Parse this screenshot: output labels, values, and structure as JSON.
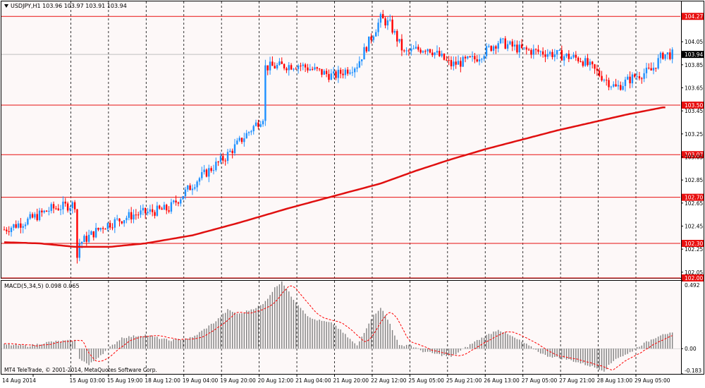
{
  "header": {
    "symbol_line": "USDJPY,H1  103.96 103.97 103.91 103.94",
    "menu_arrow": "triangle-down-icon"
  },
  "indicator": {
    "label": "MACD(5,34,5) 0.098 0.065"
  },
  "copyright": "MT4 TeleTrade, © 2001-2014, MetaQuotes Software Corp.",
  "colors": {
    "background": "#ffffff",
    "bull_candle": "#1e90ff",
    "bear_candle": "#ff0000",
    "level_line": "#e81010",
    "ma_line": "#e01010",
    "macd_hist": "#808080",
    "macd_signal": "#ff0000",
    "current_price_tag": "#000000"
  },
  "chart_data": [
    {
      "type": "candlestick",
      "symbol": "USDJPY",
      "timeframe": "H1",
      "ohlc_header": {
        "open": 103.96,
        "high": 103.97,
        "low": 103.91,
        "close": 103.94
      },
      "current_price": "103.94",
      "ylim": [
        102.0,
        104.4
      ],
      "y_ticks": [
        "104.05",
        "103.85",
        "103.65",
        "103.45",
        "103.25",
        "103.05",
        "102.85",
        "102.65",
        "102.45",
        "102.25",
        "102.05"
      ],
      "x_ticks": [
        "14 Aug 2014",
        "15 Aug 03:00",
        "15 Aug 19:00",
        "18 Aug 12:00",
        "19 Aug 04:00",
        "19 Aug 20:00",
        "20 Aug 12:00",
        "21 Aug 04:00",
        "21 Aug 20:00",
        "22 Aug 12:00",
        "25 Aug 05:00",
        "25 Aug 21:00",
        "26 Aug 13:00",
        "27 Aug 05:00",
        "27 Aug 21:00",
        "28 Aug 13:00",
        "29 Aug 05:00"
      ],
      "levels": [
        "104.27",
        "103.50",
        "103.07",
        "102.70",
        "102.30",
        "102.00"
      ],
      "ma_series": {
        "x": [
          0,
          15,
          30,
          45,
          60,
          80,
          100,
          120,
          140,
          160,
          175,
          190,
          205,
          220,
          235,
          250,
          265,
          280
        ],
        "y": [
          102.31,
          102.3,
          102.27,
          102.27,
          102.3,
          102.37,
          102.48,
          102.6,
          102.71,
          102.82,
          102.93,
          103.03,
          103.12,
          103.2,
          103.28,
          103.35,
          103.42,
          103.48
        ]
      },
      "price_path": {
        "x": [
          0,
          10,
          20,
          30,
          31,
          32,
          42,
          55,
          70,
          82,
          94,
          110,
          111,
          125,
          140,
          150,
          160,
          164,
          170,
          175,
          180,
          190,
          200,
          210,
          220,
          232,
          245,
          260,
          268,
          275,
          280
        ],
        "y": [
          102.42,
          102.5,
          102.6,
          102.64,
          102.18,
          102.3,
          102.45,
          102.55,
          102.6,
          102.85,
          103.05,
          103.4,
          103.83,
          103.85,
          103.75,
          103.85,
          104.25,
          104.2,
          103.95,
          103.98,
          104.0,
          103.85,
          103.9,
          104.05,
          103.98,
          103.95,
          103.9,
          103.65,
          103.75,
          103.8,
          103.94
        ]
      }
    },
    {
      "type": "bar",
      "name": "MACD(5,34,5)",
      "values_label": "0.098 0.065",
      "ylim": [
        -0.183,
        0.492
      ],
      "y_ticks": [
        "0.492",
        "0.00",
        "-0.183"
      ],
      "hist_path": {
        "x": [
          0,
          10,
          20,
          30,
          32,
          36,
          40,
          50,
          60,
          70,
          80,
          90,
          95,
          100,
          110,
          115,
          118,
          122,
          130,
          140,
          150,
          156,
          160,
          164,
          168,
          172,
          178,
          190,
          200,
          210,
          220,
          230,
          240,
          250,
          255,
          260,
          265,
          270,
          280
        ],
        "y": [
          0.03,
          0.02,
          0.05,
          0.06,
          -0.07,
          -0.12,
          -0.06,
          0.08,
          0.1,
          0.06,
          0.08,
          0.2,
          0.28,
          0.25,
          0.32,
          0.44,
          0.49,
          0.38,
          0.22,
          0.18,
          0.02,
          0.22,
          0.3,
          0.18,
          0.02,
          0.03,
          -0.02,
          -0.06,
          0.05,
          0.14,
          0.05,
          -0.05,
          -0.08,
          -0.13,
          -0.16,
          -0.07,
          -0.04,
          0.02,
          0.11
        ]
      }
    }
  ]
}
